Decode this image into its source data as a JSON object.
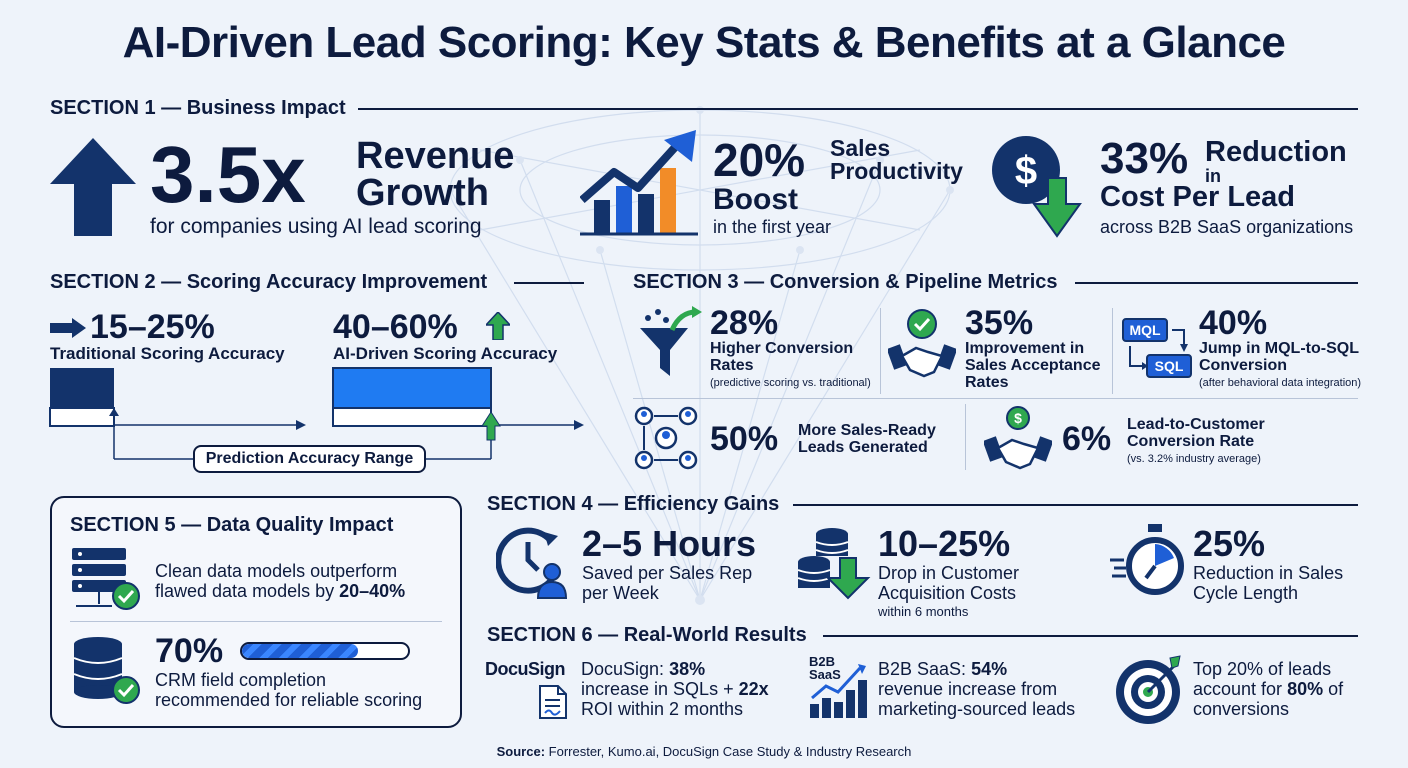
{
  "title": "AI-Driven Lead Scoring: Key Stats & Benefits at a Glance",
  "section1": {
    "heading": "SECTION 1 — Business Impact",
    "revenue": {
      "value": "3.5x",
      "label_line1": "Revenue",
      "label_line2": "Growth",
      "caption": "for companies using AI lead scoring"
    },
    "productivity": {
      "value": "20%",
      "label_line1": "Sales",
      "label_line2": "Productivity",
      "label_line3": "Boost",
      "caption": "in the first year"
    },
    "cost": {
      "value": "33%",
      "label_line1": "Reduction",
      "label_line2": "in",
      "label_line3": "Cost Per Lead",
      "caption": "across B2B SaaS organizations"
    }
  },
  "section2": {
    "heading": "SECTION 2 — Scoring Accuracy Improvement",
    "traditional": {
      "value": "15–25%",
      "label": "Traditional Scoring Accuracy"
    },
    "ai": {
      "value": "40–60%",
      "label": "AI-Driven Scoring Accuracy"
    },
    "range_label": "Prediction Accuracy Range"
  },
  "section3": {
    "heading": "SECTION 3 — Conversion & Pipeline Metrics",
    "items": [
      {
        "value": "28%",
        "line1": "Higher Conversion",
        "line2": "Rates",
        "note": "(predictive scoring vs. traditional)"
      },
      {
        "value": "35%",
        "line1": "Improvement in",
        "line2": "Sales Acceptance",
        "line3": "Rates"
      },
      {
        "value": "40%",
        "line1": "Jump in MQL-to-SQL",
        "line2": "Conversion",
        "note": "(after behavioral data integration)",
        "tag1": "MQL",
        "tag2": "SQL"
      },
      {
        "value": "50%",
        "line1": "More Sales-Ready",
        "line2": "Leads Generated"
      },
      {
        "value": "6%",
        "line1": "Lead-to-Customer",
        "line2": "Conversion Rate",
        "note": "(vs. 3.2% industry average)"
      }
    ]
  },
  "section4": {
    "heading": "SECTION 4 — Efficiency Gains",
    "items": [
      {
        "value": "2–5 Hours",
        "line1": "Saved per Sales Rep",
        "line2": "per Week"
      },
      {
        "value": "10–25%",
        "line1": "Drop in Customer",
        "line2": "Acquisition Costs",
        "note": "within 6 months"
      },
      {
        "value": "25%",
        "line1": "Reduction in Sales",
        "line2": "Cycle Length"
      }
    ]
  },
  "section5": {
    "heading": "SECTION 5 — Data Quality Impact",
    "clean_line1": "Clean data models outperform",
    "clean_line2_prefix": "flawed data models by ",
    "clean_line2_bold": "20–40%",
    "crm_value": "70%",
    "crm_progress": 0.7,
    "crm_line1": "CRM field completion",
    "crm_line2": "recommended for reliable scoring"
  },
  "section6": {
    "heading": "SECTION 6 — Real-World Results",
    "docusign": {
      "logo": "DocuSign",
      "line1_prefix": "DocuSign: ",
      "line1_bold": "38%",
      "line2_prefix": "increase in SQLs + ",
      "line2_bold": "22x",
      "line3": "ROI within 2 months"
    },
    "saas": {
      "logo1": "B2B",
      "logo2": "SaaS",
      "line1_prefix": "B2B SaaS: ",
      "line1_bold": "54%",
      "line2": "revenue increase from",
      "line3": "marketing-sourced leads"
    },
    "top": {
      "line1": "Top 20% of leads",
      "line2_prefix": "account for ",
      "line2_bold": "80%",
      "line2_suffix": " of",
      "line3": "conversions"
    }
  },
  "source_label": "Source:",
  "source_text": " Forrester, Kumo.ai, DocuSign Case Study & Industry Research",
  "colors": {
    "navy": "#0d1b3e",
    "blue": "#1f5fd6",
    "green": "#2fa84f",
    "orange": "#f28c28"
  }
}
